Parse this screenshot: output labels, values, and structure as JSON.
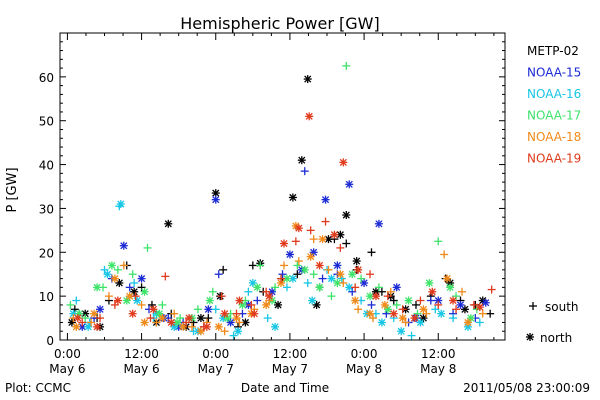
{
  "chart_data": {
    "type": "scatter",
    "title": "Hemispheric Power [GW]",
    "ylabel": "P [GW]",
    "xlabel": "Date and Time",
    "ylim": [
      0,
      70
    ],
    "xlim": [
      -0.05,
      2.95
    ],
    "y_ticks": [
      0,
      10,
      20,
      30,
      40,
      50,
      60
    ],
    "x_ticks": [
      {
        "t": 0.0,
        "time": "0:00",
        "date": "May 6"
      },
      {
        "t": 0.5,
        "time": "12:00",
        "date": "May 6"
      },
      {
        "t": 1.0,
        "time": "0:00",
        "date": "May 7"
      },
      {
        "t": 1.5,
        "time": "12:00",
        "date": "May 7"
      },
      {
        "t": 2.0,
        "time": "0:00",
        "date": "May 8"
      },
      {
        "t": 2.5,
        "time": "12:00",
        "date": "May 8"
      }
    ],
    "x_unit_note": "x values are days since 2011-05-06 00:00",
    "legend": {
      "placement": "right"
    },
    "marker_legend": [
      {
        "symbol": "+",
        "label": "south"
      },
      {
        "symbol": "*",
        "label": "north"
      }
    ],
    "series": [
      {
        "name": "METP-02",
        "color": "#000000",
        "south": [
          [
            0.05,
            7
          ],
          [
            0.2,
            5
          ],
          [
            0.28,
            9
          ],
          [
            0.4,
            17
          ],
          [
            0.5,
            12
          ],
          [
            0.57,
            8
          ],
          [
            0.7,
            6
          ],
          [
            0.85,
            4
          ],
          [
            0.95,
            5
          ],
          [
            1.05,
            16
          ],
          [
            1.15,
            3
          ],
          [
            1.25,
            17
          ],
          [
            1.32,
            11
          ],
          [
            1.45,
            14
          ],
          [
            1.55,
            15
          ],
          [
            1.7,
            12
          ],
          [
            1.8,
            23
          ],
          [
            1.88,
            22
          ],
          [
            1.95,
            16
          ],
          [
            2.05,
            20
          ],
          [
            2.12,
            11
          ],
          [
            2.2,
            9
          ],
          [
            2.35,
            8
          ],
          [
            2.45,
            10
          ],
          [
            2.55,
            14
          ],
          [
            2.65,
            9
          ],
          [
            2.75,
            8
          ],
          [
            2.85,
            6
          ]
        ],
        "north": [
          [
            0.03,
            4
          ],
          [
            0.12,
            6
          ],
          [
            0.22,
            3
          ],
          [
            0.35,
            13
          ],
          [
            0.45,
            11
          ],
          [
            0.6,
            4
          ],
          [
            0.68,
            26.5
          ],
          [
            0.8,
            3
          ],
          [
            0.9,
            5
          ],
          [
            1.0,
            33.5
          ],
          [
            1.03,
            10
          ],
          [
            1.2,
            4
          ],
          [
            1.3,
            17.5
          ],
          [
            1.42,
            8
          ],
          [
            1.52,
            32.5
          ],
          [
            1.58,
            41
          ],
          [
            1.62,
            59.5
          ],
          [
            1.68,
            8
          ],
          [
            1.76,
            23
          ],
          [
            1.84,
            24
          ],
          [
            1.88,
            28.5
          ],
          [
            1.95,
            18
          ],
          [
            2.08,
            11
          ],
          [
            2.18,
            10
          ],
          [
            2.28,
            7
          ],
          [
            2.4,
            5
          ],
          [
            2.58,
            13
          ],
          [
            2.68,
            7
          ],
          [
            2.8,
            9
          ]
        ]
      },
      {
        "name": "NOAA-15",
        "color": "#1c2bd4",
        "south": [
          [
            0.08,
            6
          ],
          [
            0.18,
            5
          ],
          [
            0.3,
            14
          ],
          [
            0.42,
            12
          ],
          [
            0.55,
            7
          ],
          [
            0.68,
            5
          ],
          [
            0.78,
            4
          ],
          [
            0.92,
            3
          ],
          [
            1.02,
            15
          ],
          [
            1.18,
            6
          ],
          [
            1.28,
            9
          ],
          [
            1.45,
            15
          ],
          [
            1.6,
            38.5
          ],
          [
            1.72,
            14
          ],
          [
            1.82,
            15
          ],
          [
            1.92,
            11
          ],
          [
            2.05,
            8
          ],
          [
            2.15,
            6
          ],
          [
            2.3,
            4
          ],
          [
            2.45,
            9
          ],
          [
            2.6,
            6
          ],
          [
            2.75,
            5
          ]
        ],
        "north": [
          [
            0.1,
            3
          ],
          [
            0.22,
            7
          ],
          [
            0.38,
            21.5
          ],
          [
            0.5,
            14
          ],
          [
            0.65,
            5
          ],
          [
            0.75,
            3
          ],
          [
            0.95,
            7
          ],
          [
            1.0,
            32
          ],
          [
            1.1,
            4
          ],
          [
            1.22,
            8
          ],
          [
            1.38,
            11
          ],
          [
            1.5,
            19.5
          ],
          [
            1.58,
            16
          ],
          [
            1.66,
            20
          ],
          [
            1.74,
            32
          ],
          [
            1.82,
            17
          ],
          [
            1.9,
            35.5
          ],
          [
            2.0,
            13
          ],
          [
            2.1,
            26.5
          ],
          [
            2.22,
            12
          ],
          [
            2.35,
            5
          ],
          [
            2.5,
            9
          ],
          [
            2.65,
            8
          ],
          [
            2.82,
            8.5
          ]
        ]
      },
      {
        "name": "NOAA-16",
        "color": "#17c6e6",
        "south": [
          [
            0.06,
            9
          ],
          [
            0.15,
            4
          ],
          [
            0.25,
            16
          ],
          [
            0.35,
            30.5
          ],
          [
            0.45,
            13
          ],
          [
            0.58,
            5
          ],
          [
            0.7,
            4
          ],
          [
            0.85,
            2
          ],
          [
            1.0,
            7
          ],
          [
            1.12,
            1
          ],
          [
            1.22,
            11
          ],
          [
            1.35,
            5
          ],
          [
            1.48,
            12
          ],
          [
            1.62,
            13
          ],
          [
            1.75,
            16
          ],
          [
            1.85,
            14
          ],
          [
            1.98,
            9
          ],
          [
            2.08,
            6
          ],
          [
            2.2,
            5
          ],
          [
            2.32,
            1
          ],
          [
            2.48,
            7
          ],
          [
            2.6,
            5
          ],
          [
            2.78,
            4
          ]
        ],
        "north": [
          [
            0.04,
            6
          ],
          [
            0.14,
            3
          ],
          [
            0.27,
            15
          ],
          [
            0.36,
            31
          ],
          [
            0.47,
            9
          ],
          [
            0.6,
            6
          ],
          [
            0.72,
            3
          ],
          [
            0.88,
            2
          ],
          [
            1.05,
            5
          ],
          [
            1.15,
            2
          ],
          [
            1.25,
            13
          ],
          [
            1.4,
            3
          ],
          [
            1.52,
            14
          ],
          [
            1.65,
            9
          ],
          [
            1.78,
            14
          ],
          [
            1.9,
            12
          ],
          [
            2.02,
            6
          ],
          [
            2.12,
            4
          ],
          [
            2.25,
            2
          ],
          [
            2.38,
            4
          ],
          [
            2.52,
            6
          ],
          [
            2.7,
            3
          ]
        ]
      },
      {
        "name": "NOAA-17",
        "color": "#3ee36a",
        "south": [
          [
            0.02,
            8
          ],
          [
            0.12,
            5
          ],
          [
            0.24,
            12
          ],
          [
            0.34,
            16
          ],
          [
            0.44,
            15
          ],
          [
            0.54,
            21
          ],
          [
            0.64,
            8
          ],
          [
            0.76,
            5
          ],
          [
            0.88,
            7
          ],
          [
            0.98,
            11
          ],
          [
            1.1,
            6
          ],
          [
            1.2,
            9
          ],
          [
            1.3,
            17
          ],
          [
            1.4,
            12
          ],
          [
            1.55,
            17
          ],
          [
            1.66,
            15
          ],
          [
            1.78,
            10
          ],
          [
            1.88,
            62.5
          ],
          [
            1.98,
            14
          ],
          [
            2.1,
            12
          ],
          [
            2.22,
            8
          ],
          [
            2.36,
            6
          ],
          [
            2.5,
            22.5
          ],
          [
            2.62,
            10
          ],
          [
            2.76,
            7
          ]
        ],
        "north": [
          [
            0.08,
            6
          ],
          [
            0.2,
            12
          ],
          [
            0.3,
            17
          ],
          [
            0.4,
            9
          ],
          [
            0.52,
            11
          ],
          [
            0.62,
            6
          ],
          [
            0.74,
            4
          ],
          [
            0.84,
            5
          ],
          [
            0.96,
            9
          ],
          [
            1.08,
            5
          ],
          [
            1.18,
            8
          ],
          [
            1.28,
            12
          ],
          [
            1.38,
            9
          ],
          [
            1.48,
            14
          ],
          [
            1.6,
            16
          ],
          [
            1.7,
            12
          ],
          [
            1.82,
            13
          ],
          [
            1.92,
            15
          ],
          [
            2.04,
            10
          ],
          [
            2.16,
            7
          ],
          [
            2.3,
            9
          ],
          [
            2.44,
            13
          ],
          [
            2.58,
            12
          ],
          [
            2.72,
            5
          ]
        ]
      },
      {
        "name": "NOAA-18",
        "color": "#f08a1a",
        "south": [
          [
            0.04,
            5
          ],
          [
            0.16,
            4
          ],
          [
            0.28,
            10
          ],
          [
            0.38,
            17
          ],
          [
            0.5,
            8
          ],
          [
            0.6,
            4
          ],
          [
            0.72,
            6
          ],
          [
            0.84,
            3
          ],
          [
            0.94,
            4
          ],
          [
            1.06,
            2
          ],
          [
            1.16,
            4
          ],
          [
            1.26,
            7
          ],
          [
            1.36,
            9
          ],
          [
            1.46,
            17
          ],
          [
            1.56,
            18
          ],
          [
            1.66,
            23
          ],
          [
            1.76,
            16
          ],
          [
            1.86,
            13
          ],
          [
            1.96,
            7
          ],
          [
            2.06,
            5
          ],
          [
            2.18,
            11
          ],
          [
            2.28,
            4
          ],
          [
            2.42,
            6
          ],
          [
            2.54,
            19.5
          ],
          [
            2.66,
            11
          ],
          [
            2.8,
            6
          ]
        ],
        "north": [
          [
            0.06,
            3
          ],
          [
            0.18,
            6
          ],
          [
            0.32,
            14
          ],
          [
            0.42,
            10
          ],
          [
            0.52,
            4
          ],
          [
            0.64,
            5
          ],
          [
            0.78,
            3
          ],
          [
            0.9,
            2
          ],
          [
            1.02,
            3
          ],
          [
            1.14,
            5
          ],
          [
            1.24,
            6
          ],
          [
            1.34,
            8
          ],
          [
            1.44,
            13
          ],
          [
            1.54,
            26
          ],
          [
            1.64,
            19
          ],
          [
            1.72,
            23
          ],
          [
            1.84,
            15
          ],
          [
            1.94,
            9
          ],
          [
            2.04,
            6
          ],
          [
            2.14,
            8
          ],
          [
            2.26,
            5
          ],
          [
            2.4,
            7
          ],
          [
            2.56,
            14
          ],
          [
            2.7,
            4
          ]
        ]
      },
      {
        "name": "NOAA-19",
        "color": "#e03a1c",
        "south": [
          [
            0.1,
            4
          ],
          [
            0.22,
            5
          ],
          [
            0.32,
            8
          ],
          [
            0.46,
            10
          ],
          [
            0.56,
            5
          ],
          [
            0.66,
            14.5
          ],
          [
            0.8,
            4
          ],
          [
            0.92,
            3
          ],
          [
            1.04,
            10
          ],
          [
            1.14,
            6
          ],
          [
            1.24,
            8
          ],
          [
            1.34,
            11
          ],
          [
            1.44,
            14
          ],
          [
            1.54,
            22.5
          ],
          [
            1.64,
            25
          ],
          [
            1.74,
            27
          ],
          [
            1.84,
            21
          ],
          [
            1.94,
            12
          ],
          [
            2.04,
            15
          ],
          [
            2.16,
            10
          ],
          [
            2.26,
            7
          ],
          [
            2.38,
            9
          ],
          [
            2.5,
            8
          ],
          [
            2.62,
            7
          ],
          [
            2.74,
            8
          ],
          [
            2.86,
            11.5
          ]
        ],
        "north": [
          [
            0.07,
            5
          ],
          [
            0.2,
            3
          ],
          [
            0.34,
            9
          ],
          [
            0.44,
            6
          ],
          [
            0.58,
            7
          ],
          [
            0.7,
            4
          ],
          [
            0.82,
            5
          ],
          [
            0.94,
            3
          ],
          [
            1.06,
            6
          ],
          [
            1.16,
            9
          ],
          [
            1.26,
            6
          ],
          [
            1.36,
            10
          ],
          [
            1.46,
            22
          ],
          [
            1.56,
            25.5
          ],
          [
            1.63,
            51
          ],
          [
            1.7,
            17
          ],
          [
            1.8,
            24
          ],
          [
            1.86,
            40.5
          ],
          [
            1.96,
            16
          ],
          [
            2.08,
            10
          ],
          [
            2.2,
            6
          ],
          [
            2.34,
            5
          ],
          [
            2.46,
            11
          ],
          [
            2.6,
            9
          ],
          [
            2.78,
            7.5
          ]
        ]
      }
    ],
    "footer": {
      "left": "Plot: CCMC",
      "right": "2011/05/08 23:00:09"
    }
  }
}
